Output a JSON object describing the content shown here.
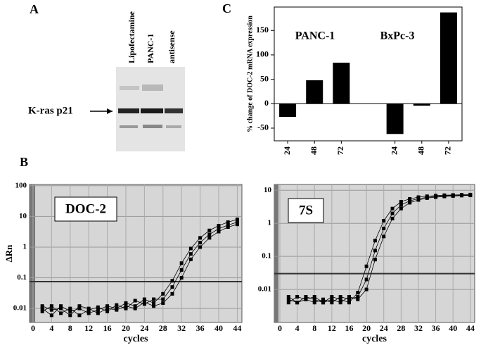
{
  "panel_labels": {
    "a": "A",
    "b": "B",
    "c": "C"
  },
  "blot": {
    "lanes": [
      "Lipofectamine",
      "PANC-1",
      "antisense"
    ],
    "band_label": "K-ras p21"
  },
  "chart_data": [
    {
      "type": "bar",
      "ylabel": "% change of DOC-2 mRNA expression",
      "group_labels": [
        "PANC-1",
        "BxPc-3"
      ],
      "categories": [
        "24",
        "48",
        "72",
        null,
        "24",
        "48",
        "72"
      ],
      "values": [
        -27,
        48,
        84,
        null,
        -62,
        -4,
        187
      ],
      "color": "#000000",
      "ylim": [
        -76,
        198
      ],
      "yticks": [
        -50,
        0,
        50,
        100,
        150
      ]
    },
    {
      "type": "line",
      "title": "DOC-2",
      "xlabel": "cycles",
      "ylabel": "ΔRn",
      "log_y": true,
      "grid": true,
      "threshold": 0.075,
      "x": [
        2,
        4,
        6,
        8,
        10,
        12,
        14,
        16,
        18,
        20,
        22,
        24,
        26,
        28,
        30,
        32,
        34,
        36,
        38,
        40,
        42,
        44
      ],
      "series": [
        {
          "color": "#000000",
          "values": [
            0.01,
            0.006,
            0.012,
            0.008,
            0.01,
            0.007,
            0.009,
            0.012,
            0.01,
            0.015,
            0.012,
            0.02,
            0.015,
            0.03,
            0.08,
            0.3,
            0.9,
            2,
            3.5,
            5,
            6.5,
            8
          ]
        },
        {
          "color": "#000000",
          "values": [
            0.008,
            0.012,
            0.007,
            0.01,
            0.006,
            0.009,
            0.011,
            0.008,
            0.013,
            0.01,
            0.018,
            0.014,
            0.02,
            0.02,
            0.05,
            0.18,
            0.6,
            1.4,
            2.6,
            4,
            5.2,
            6.5
          ]
        },
        {
          "color": "#000000",
          "values": [
            0.012,
            0.009,
            0.01,
            0.006,
            0.012,
            0.01,
            0.007,
            0.01,
            0.009,
            0.012,
            0.01,
            0.016,
            0.012,
            0.015,
            0.03,
            0.1,
            0.4,
            1.0,
            2.0,
            3.2,
            4.5,
            5.5
          ]
        }
      ],
      "xlim": [
        -0.75,
        45
      ],
      "xticks": [
        0,
        4,
        8,
        12,
        16,
        20,
        24,
        28,
        32,
        36,
        40,
        44
      ],
      "ylim": [
        0.0035,
        110
      ],
      "yticks": [
        0.01,
        0.1,
        1,
        10,
        100
      ]
    },
    {
      "type": "line",
      "title": "7S",
      "xlabel": "cycles",
      "log_y": true,
      "grid": true,
      "threshold": 0.03,
      "x": [
        2,
        4,
        6,
        8,
        10,
        12,
        14,
        16,
        18,
        20,
        22,
        24,
        26,
        28,
        30,
        32,
        34,
        36,
        38,
        40,
        42,
        44
      ],
      "series": [
        {
          "color": "#000000",
          "values": [
            0.005,
            0.004,
            0.006,
            0.005,
            0.004,
            0.006,
            0.005,
            0.004,
            0.008,
            0.05,
            0.3,
            1.2,
            2.8,
            4.5,
            5.5,
            6.2,
            6.6,
            6.9,
            7.1,
            7.2,
            7.3,
            7.4
          ]
        },
        {
          "color": "#000000",
          "values": [
            0.004,
            0.006,
            0.005,
            0.004,
            0.005,
            0.004,
            0.006,
            0.005,
            0.006,
            0.02,
            0.15,
            0.7,
            2,
            3.6,
            4.8,
            5.6,
            6.1,
            6.5,
            6.8,
            7,
            7.1,
            7.2
          ]
        },
        {
          "color": "#000000",
          "values": [
            0.006,
            0.004,
            0.005,
            0.006,
            0.004,
            0.005,
            0.004,
            0.006,
            0.005,
            0.01,
            0.08,
            0.4,
            1.4,
            2.8,
            4.2,
            5.1,
            5.8,
            6.2,
            6.5,
            6.7,
            6.9,
            7
          ]
        }
      ],
      "xlim": [
        -1.3,
        45
      ],
      "xticks": [
        0,
        4,
        8,
        12,
        16,
        20,
        24,
        28,
        32,
        36,
        40,
        44
      ],
      "ylim": [
        0.001,
        15
      ],
      "yticks": [
        0.01,
        0.1,
        1,
        10
      ]
    }
  ]
}
